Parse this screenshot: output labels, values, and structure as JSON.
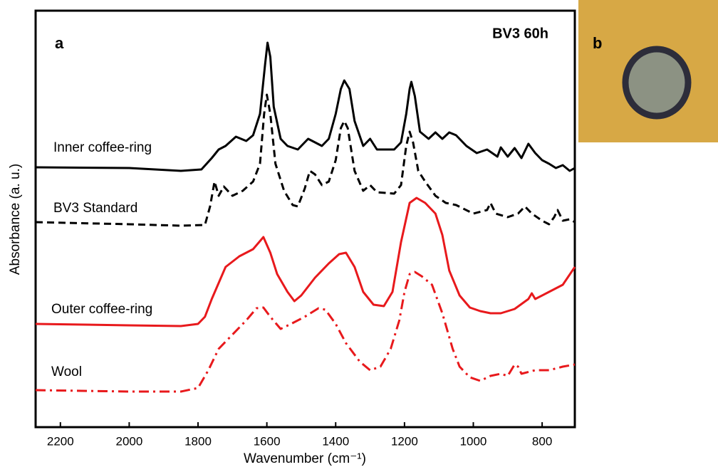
{
  "chart_data": {
    "type": "line",
    "panel_labels": [
      "a",
      "b"
    ],
    "annotation": "BV3 60h",
    "xlabel": "Wavenumber (cm⁻¹)",
    "ylabel": "Absorbance (a. u.)",
    "xlim": [
      2272,
      705
    ],
    "ylim": [
      0,
      585
    ],
    "xticks": [
      2200,
      2000,
      1800,
      1600,
      1400,
      1200,
      1000,
      800
    ],
    "series": [
      {
        "name": "Inner coffee-ring",
        "color": "#000000",
        "dash": "solid",
        "x": [
          2272,
          2000,
          1850,
          1790,
          1760,
          1740,
          1720,
          1690,
          1660,
          1640,
          1620,
          1605,
          1598,
          1590,
          1580,
          1560,
          1540,
          1510,
          1480,
          1460,
          1440,
          1420,
          1400,
          1385,
          1375,
          1360,
          1345,
          1320,
          1300,
          1280,
          1230,
          1210,
          1195,
          1185,
          1180,
          1170,
          1155,
          1130,
          1110,
          1090,
          1070,
          1050,
          1020,
          990,
          960,
          930,
          920,
          900,
          880,
          860,
          840,
          820,
          800,
          780,
          760,
          740,
          720,
          705
        ],
        "values": [
          365,
          364,
          360,
          362,
          378,
          390,
          395,
          408,
          402,
          410,
          440,
          510,
          540,
          520,
          450,
          405,
          395,
          390,
          405,
          400,
          395,
          405,
          440,
          475,
          487,
          475,
          430,
          395,
          405,
          390,
          390,
          400,
          440,
          475,
          485,
          465,
          415,
          405,
          414,
          405,
          414,
          410,
          395,
          385,
          390,
          380,
          393,
          380,
          392,
          378,
          398,
          385,
          375,
          370,
          364,
          368,
          360,
          364
        ]
      },
      {
        "name": "BV3 Standard",
        "color": "#000000",
        "dash": "dashed",
        "x": [
          2272,
          2000,
          1850,
          1780,
          1765,
          1752,
          1740,
          1725,
          1700,
          1670,
          1640,
          1620,
          1608,
          1600,
          1590,
          1575,
          1550,
          1525,
          1510,
          1490,
          1475,
          1460,
          1440,
          1420,
          1400,
          1385,
          1375,
          1365,
          1345,
          1320,
          1300,
          1280,
          1230,
          1210,
          1195,
          1185,
          1175,
          1160,
          1140,
          1110,
          1080,
          1050,
          1000,
          960,
          950,
          935,
          900,
          870,
          850,
          830,
          800,
          780,
          765,
          755,
          740,
          720,
          705
        ],
        "values": [
          288,
          285,
          283,
          284,
          310,
          345,
          325,
          338,
          325,
          332,
          345,
          370,
          440,
          467,
          440,
          370,
          332,
          312,
          310,
          335,
          360,
          355,
          340,
          345,
          375,
          420,
          430,
          420,
          360,
          332,
          340,
          330,
          328,
          340,
          395,
          415,
          400,
          360,
          345,
          325,
          315,
          312,
          300,
          305,
          315,
          300,
          295,
          300,
          310,
          300,
          290,
          285,
          295,
          305,
          290,
          292,
          288
        ]
      },
      {
        "name": "Outer coffee-ring",
        "color": "#e8191c",
        "dash": "solid",
        "x": [
          2272,
          2000,
          1850,
          1800,
          1780,
          1760,
          1720,
          1680,
          1640,
          1610,
          1590,
          1570,
          1540,
          1520,
          1500,
          1460,
          1420,
          1390,
          1370,
          1345,
          1320,
          1290,
          1260,
          1235,
          1210,
          1185,
          1165,
          1140,
          1110,
          1090,
          1070,
          1040,
          1010,
          980,
          950,
          920,
          880,
          840,
          830,
          820,
          780,
          740,
          705
        ],
        "values": [
          145,
          143,
          142,
          145,
          155,
          180,
          225,
          240,
          250,
          267,
          245,
          215,
          190,
          177,
          185,
          210,
          230,
          243,
          245,
          225,
          190,
          172,
          170,
          190,
          260,
          315,
          322,
          315,
          300,
          270,
          220,
          185,
          168,
          163,
          160,
          160,
          166,
          180,
          188,
          180,
          190,
          200,
          225
        ]
      },
      {
        "name": "Wool",
        "color": "#e8191c",
        "dash": "dashdot",
        "x": [
          2272,
          2000,
          1850,
          1800,
          1770,
          1740,
          1700,
          1660,
          1630,
          1610,
          1590,
          1560,
          1530,
          1490,
          1450,
          1430,
          1400,
          1370,
          1330,
          1300,
          1270,
          1240,
          1215,
          1200,
          1185,
          1170,
          1150,
          1120,
          1090,
          1060,
          1040,
          1010,
          980,
          950,
          920,
          900,
          880,
          870,
          860,
          820,
          780,
          740,
          705
        ],
        "values": [
          52,
          50,
          50,
          55,
          80,
          110,
          130,
          150,
          167,
          168,
          155,
          138,
          145,
          155,
          167,
          165,
          145,
          118,
          92,
          80,
          85,
          110,
          150,
          190,
          215,
          218,
          212,
          200,
          160,
          110,
          85,
          70,
          65,
          72,
          75,
          72,
          88,
          85,
          75,
          80,
          80,
          85,
          88
        ]
      }
    ]
  }
}
